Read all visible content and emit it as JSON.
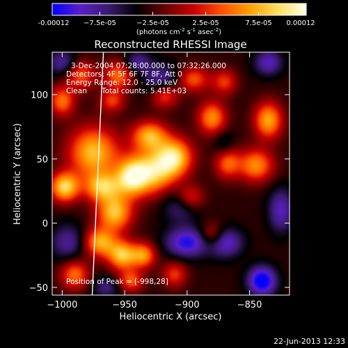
{
  "chart_data": {
    "type": "heatmap",
    "title": "Reconstructed RHESSI Image",
    "xlabel": "Heliocentric X (arcsec)",
    "ylabel": "Heliocentric Y (arcsec)",
    "xlim": [
      -1008,
      -818
    ],
    "ylim": [
      -56,
      133
    ],
    "x_ticks": [
      -1000,
      -950,
      -900,
      -850
    ],
    "y_ticks": [
      -50,
      0,
      50,
      100
    ],
    "colorbar": {
      "min": -0.00012,
      "max": 0.00012,
      "ticks": [
        -0.00012,
        -7.5e-05,
        -2.5e-05,
        2.5e-05,
        7.5e-05,
        0.00012
      ],
      "tick_labels": [
        "-0.00012",
        "−7.5e-05",
        "−2.5e-05",
        "2.5e-05",
        "7.5e-05",
        "0.00012"
      ],
      "units_text": "(photons cm",
      "units_exp1": "-2",
      "units_mid": " s",
      "units_exp2": "-1",
      "units_tail": " asec",
      "units_exp3": "-2",
      "units_close": ")",
      "colors": [
        "#0000ff",
        "#5a1fc8",
        "#3a1a6e",
        "#000000",
        "#6a0000",
        "#c80000",
        "#ff5000",
        "#ffa000",
        "#ffe060",
        "#ffffe8"
      ]
    },
    "limb_color": "#ffffff",
    "limb": {
      "x0": -967,
      "x1": -976,
      "y0": 133,
      "y1": -56
    },
    "peak": {
      "x": -998,
      "y": 28
    },
    "blobs": [
      {
        "x": -975,
        "y": 55,
        "value": 0.00011,
        "sx": 14,
        "sy": 14
      },
      {
        "x": -998,
        "y": 28,
        "value": 0.00012,
        "sx": 8,
        "sy": 8
      },
      {
        "x": -968,
        "y": 28,
        "value": 0.0001,
        "sx": 10,
        "sy": 8
      },
      {
        "x": -958,
        "y": 8,
        "value": 0.00011,
        "sx": 10,
        "sy": 10
      },
      {
        "x": -970,
        "y": -15,
        "value": 0.0001,
        "sx": 9,
        "sy": 8
      },
      {
        "x": -990,
        "y": -40,
        "value": 8e-05,
        "sx": 8,
        "sy": 8
      },
      {
        "x": -945,
        "y": 35,
        "value": 0.0001,
        "sx": 9,
        "sy": 10
      },
      {
        "x": -928,
        "y": 40,
        "value": 0.00012,
        "sx": 14,
        "sy": 12
      },
      {
        "x": -910,
        "y": 52,
        "value": 0.00011,
        "sx": 10,
        "sy": 10
      },
      {
        "x": -930,
        "y": 68,
        "value": 0.0001,
        "sx": 10,
        "sy": 8
      },
      {
        "x": -880,
        "y": 82,
        "value": 9e-05,
        "sx": 8,
        "sy": 9
      },
      {
        "x": -898,
        "y": 20,
        "value": 7e-05,
        "sx": 8,
        "sy": 7
      },
      {
        "x": -868,
        "y": 48,
        "value": 8e-05,
        "sx": 7,
        "sy": 9
      },
      {
        "x": -835,
        "y": 80,
        "value": 0.0001,
        "sx": 8,
        "sy": 10
      },
      {
        "x": -845,
        "y": 45,
        "value": 9e-05,
        "sx": 10,
        "sy": 9
      },
      {
        "x": -918,
        "y": 100,
        "value": 8e-05,
        "sx": 8,
        "sy": 7
      },
      {
        "x": -895,
        "y": 112,
        "value": 7e-05,
        "sx": 9,
        "sy": 7
      },
      {
        "x": -955,
        "y": 115,
        "value": 8e-05,
        "sx": 8,
        "sy": 8
      },
      {
        "x": -985,
        "y": 115,
        "value": 7e-05,
        "sx": 8,
        "sy": 8
      },
      {
        "x": -1000,
        "y": 95,
        "value": 8e-05,
        "sx": 7,
        "sy": 8
      },
      {
        "x": -952,
        "y": -25,
        "value": 0.00011,
        "sx": 8,
        "sy": 8
      },
      {
        "x": -935,
        "y": -25,
        "value": 9e-05,
        "sx": 7,
        "sy": 7
      },
      {
        "x": -910,
        "y": -40,
        "value": 6e-05,
        "sx": 7,
        "sy": 7
      },
      {
        "x": -945,
        "y": -45,
        "value": 7e-05,
        "sx": 7,
        "sy": 6
      },
      {
        "x": -960,
        "y": 95,
        "value": 6e-05,
        "sx": 7,
        "sy": 6
      },
      {
        "x": -880,
        "y": -10,
        "value": 6e-05,
        "sx": 7,
        "sy": 7
      },
      {
        "x": -870,
        "y": 110,
        "value": 6e-05,
        "sx": 7,
        "sy": 7
      },
      {
        "x": -905,
        "y": 15,
        "value": -5e-05,
        "sx": 10,
        "sy": 10
      },
      {
        "x": -920,
        "y": 110,
        "value": -6e-05,
        "sx": 10,
        "sy": 9
      },
      {
        "x": -995,
        "y": -15,
        "value": -5e-05,
        "sx": 10,
        "sy": 10
      },
      {
        "x": -900,
        "y": -15,
        "value": -8e-05,
        "sx": 12,
        "sy": 8
      },
      {
        "x": -870,
        "y": -15,
        "value": -7e-05,
        "sx": 10,
        "sy": 8
      },
      {
        "x": -840,
        "y": -45,
        "value": -0.0001,
        "sx": 8,
        "sy": 8
      },
      {
        "x": -825,
        "y": 10,
        "value": -6e-05,
        "sx": 7,
        "sy": 12
      },
      {
        "x": -835,
        "y": 125,
        "value": -6e-05,
        "sx": 8,
        "sy": 7
      },
      {
        "x": -1000,
        "y": 125,
        "value": -5e-05,
        "sx": 8,
        "sy": 7
      },
      {
        "x": -965,
        "y": -50,
        "value": -4e-05,
        "sx": 8,
        "sy": 6
      },
      {
        "x": -870,
        "y": 60,
        "value": -4e-05,
        "sx": 6,
        "sy": 8
      },
      {
        "x": -940,
        "y": 125,
        "value": -5e-05,
        "sx": 8,
        "sy": 6
      }
    ],
    "background": -3e-05
  },
  "annotations": {
    "time_range": "3-Dec-2004 07:28:00.000 to 07:32:26.000",
    "detectors": "Detectors: 4F 5F 6F 7F 8F, Att 0",
    "energy": "Energy Range: 12.0 - 25.0 keV",
    "algorithm": "Clean",
    "counts": "Total counts: 5.41E+03",
    "peak_label": "Position of Peak = [-998,28]"
  },
  "footer": {
    "timestamp": "22-Jun-2013 12:33"
  }
}
